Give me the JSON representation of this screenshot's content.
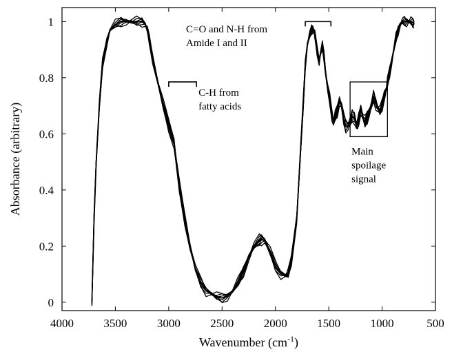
{
  "chart_data": {
    "type": "line",
    "title": "",
    "xlabel_main": "Wavenumber (cm",
    "xlabel_sup": "-1",
    "xlabel_tail": ")",
    "ylabel": "Absorbance (arbitrary)",
    "xlim": [
      4000,
      500
    ],
    "ylim": [
      -0.03,
      1.05
    ],
    "x_ticks": [
      4000,
      3500,
      3000,
      2500,
      2000,
      1500,
      1000,
      500
    ],
    "y_ticks": [
      0,
      0.2,
      0.4,
      0.6,
      0.8,
      1
    ],
    "x_tick_labels": [
      "4000",
      "3500",
      "3000",
      "2500",
      "2000",
      "1500",
      "1000",
      "500"
    ],
    "y_tick_labels": [
      "0",
      "0.2",
      "0.4",
      "0.6",
      "0.8",
      "1"
    ],
    "grid": false,
    "series_count_approx": 9,
    "spectrum": {
      "x": [
        3720,
        3700,
        3680,
        3650,
        3620,
        3580,
        3550,
        3500,
        3450,
        3400,
        3350,
        3300,
        3250,
        3220,
        3200,
        3180,
        3150,
        3100,
        3050,
        3000,
        2950,
        2930,
        2900,
        2850,
        2800,
        2750,
        2700,
        2650,
        2600,
        2550,
        2500,
        2450,
        2400,
        2350,
        2300,
        2250,
        2200,
        2150,
        2130,
        2100,
        2050,
        2000,
        1950,
        1900,
        1880,
        1850,
        1800,
        1770,
        1740,
        1720,
        1700,
        1680,
        1660,
        1650,
        1640,
        1630,
        1610,
        1590,
        1575,
        1560,
        1545,
        1530,
        1510,
        1490,
        1470,
        1455,
        1440,
        1420,
        1400,
        1380,
        1360,
        1340,
        1320,
        1300,
        1280,
        1260,
        1240,
        1230,
        1220,
        1200,
        1180,
        1160,
        1140,
        1120,
        1100,
        1080,
        1060,
        1040,
        1020,
        1000,
        980,
        960,
        950,
        930,
        910,
        890,
        870,
        850,
        830,
        810,
        790,
        770,
        750,
        730,
        710,
        700
      ],
      "y": [
        0.0,
        0.3,
        0.5,
        0.7,
        0.85,
        0.93,
        0.97,
        0.99,
        1.0,
        1.0,
        1.0,
        1.0,
        1.0,
        0.99,
        0.97,
        0.93,
        0.87,
        0.78,
        0.7,
        0.63,
        0.57,
        0.5,
        0.41,
        0.3,
        0.2,
        0.12,
        0.07,
        0.04,
        0.03,
        0.02,
        0.015,
        0.02,
        0.04,
        0.07,
        0.11,
        0.16,
        0.2,
        0.22,
        0.225,
        0.22,
        0.18,
        0.13,
        0.1,
        0.095,
        0.1,
        0.15,
        0.3,
        0.5,
        0.7,
        0.85,
        0.92,
        0.95,
        0.97,
        0.975,
        0.97,
        0.95,
        0.9,
        0.86,
        0.89,
        0.91,
        0.88,
        0.82,
        0.76,
        0.72,
        0.67,
        0.64,
        0.66,
        0.68,
        0.72,
        0.7,
        0.65,
        0.63,
        0.63,
        0.64,
        0.66,
        0.66,
        0.63,
        0.63,
        0.65,
        0.69,
        0.66,
        0.64,
        0.66,
        0.68,
        0.7,
        0.73,
        0.71,
        0.69,
        0.68,
        0.7,
        0.74,
        0.76,
        0.78,
        0.82,
        0.86,
        0.9,
        0.94,
        0.97,
        0.99,
        1.0,
        1.0,
        1.0,
        1.0,
        1.0,
        0.995,
        0.995
      ]
    },
    "annotations": [
      {
        "lines": [
          "C-H from",
          "fatty acids"
        ],
        "bracket_x": [
          3000,
          2740
        ],
        "bracket_y": 0.785
      },
      {
        "lines": [
          "C=O and N-H from",
          "Amide I and II"
        ],
        "bracket_x": [
          1720,
          1480
        ],
        "bracket_y": 1.0
      },
      {
        "lines": [
          "Main",
          "spoilage",
          "signal"
        ],
        "box_x": [
          1300,
          950
        ],
        "box_y": [
          0.59,
          0.785
        ]
      }
    ]
  }
}
